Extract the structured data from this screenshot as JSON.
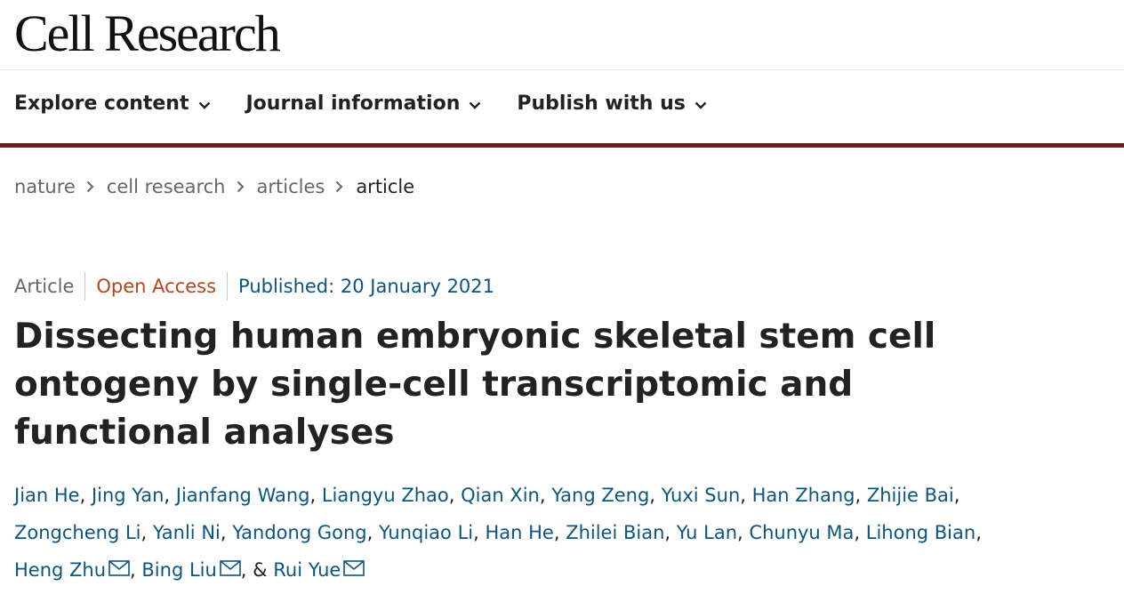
{
  "site": {
    "logo": "Cell Research"
  },
  "nav": {
    "items": [
      {
        "label": "Explore content"
      },
      {
        "label": "Journal information"
      },
      {
        "label": "Publish with us"
      }
    ]
  },
  "breadcrumb": {
    "items": [
      {
        "label": "nature"
      },
      {
        "label": "cell research"
      },
      {
        "label": "articles"
      },
      {
        "label": "article"
      }
    ]
  },
  "article": {
    "type": "Article",
    "access": "Open Access",
    "published": "Published: 20 January 2021",
    "title": "Dissecting human embryonic skeletal stem cell ontogeny by single-cell transcriptomic and functional analyses",
    "authors": [
      "Jian He",
      "Jing Yan",
      "Jianfang Wang",
      "Liangyu Zhao",
      "Qian Xin",
      "Yang Zeng",
      "Yuxi Sun",
      "Han Zhang",
      "Zhijie Bai",
      "Zongcheng Li",
      "Yanli Ni",
      "Yandong Gong",
      "Yunqiao Li",
      "Han He",
      "Zhilei Bian",
      "Yu Lan",
      "Chunyu Ma",
      "Lihong Bian",
      "Heng Zhu",
      "Bing Liu",
      "Rui Yue"
    ],
    "corresponding_authors": [
      "Heng Zhu",
      "Bing Liu",
      "Rui Yue"
    ],
    "last_separator": "&"
  },
  "colors": {
    "link": "#0b5581",
    "open_access": "#b5451b",
    "nav_border": "#6f1d1b"
  },
  "icons": {
    "nav_dropdown": "chevron-down-icon",
    "breadcrumb_separator": "chevron-right-icon",
    "author_contact": "mail-icon"
  }
}
